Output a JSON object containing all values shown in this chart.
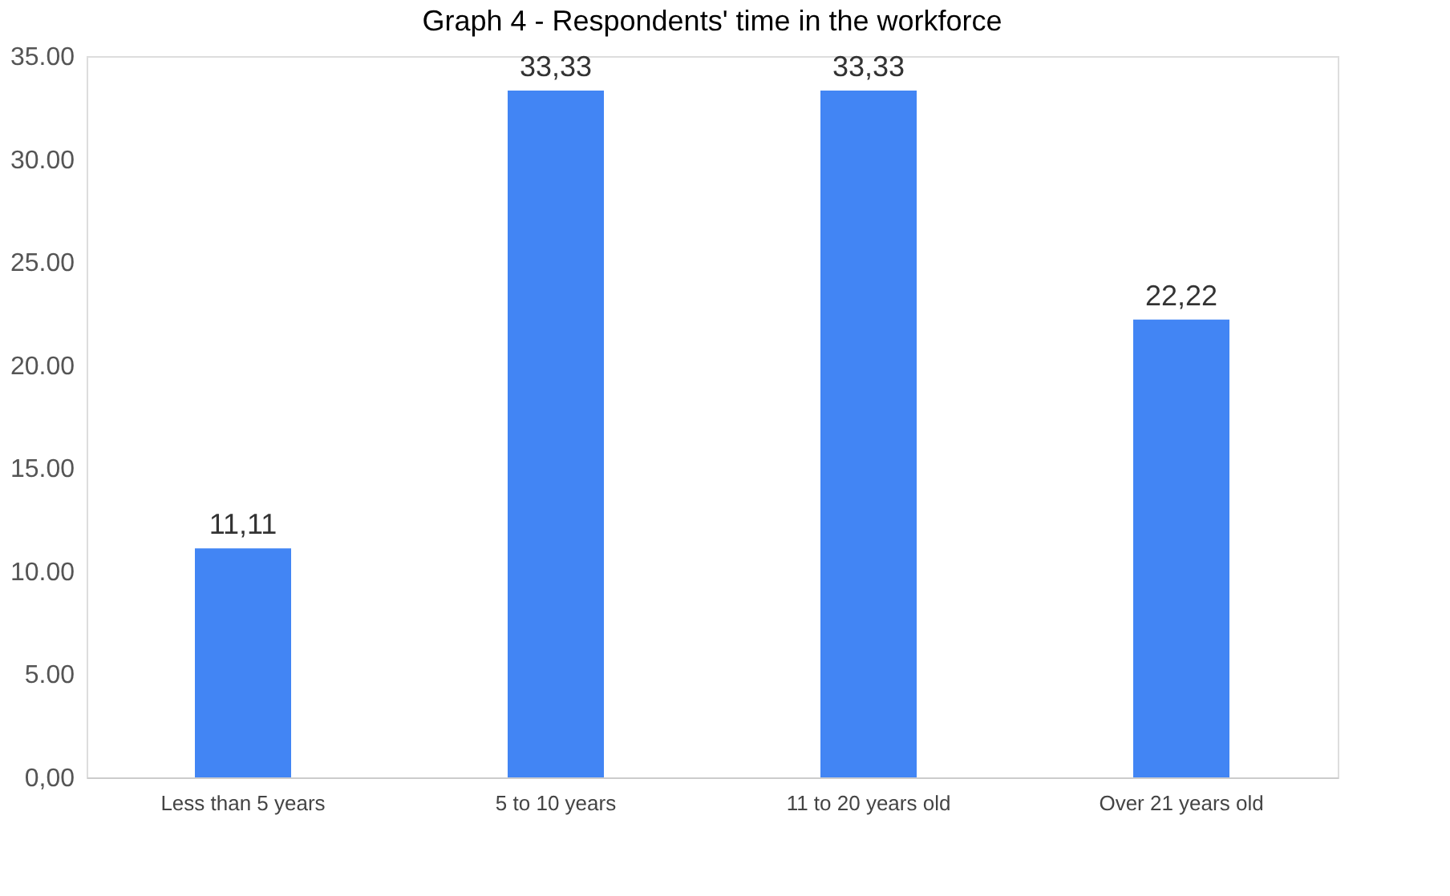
{
  "chart_data": {
    "type": "bar",
    "title": "Graph 4 - Respondents' time in the workforce",
    "categories": [
      "Less than 5 years",
      "5 to 10 years",
      "11 to 20 years old",
      "Over 21 years old"
    ],
    "values": [
      11.11,
      33.33,
      33.33,
      22.22
    ],
    "value_labels": [
      "11,11",
      "33,33",
      "33,33",
      "22,22"
    ],
    "color": "#4285f4",
    "ylim": [
      0,
      35
    ],
    "yticks": [
      {
        "value": 0,
        "label": "0,00"
      },
      {
        "value": 5,
        "label": "5.00"
      },
      {
        "value": 10,
        "label": "10.00"
      },
      {
        "value": 15,
        "label": "15.00"
      },
      {
        "value": 20,
        "label": "20.00"
      },
      {
        "value": 25,
        "label": "25.00"
      },
      {
        "value": 30,
        "label": "30.00"
      },
      {
        "value": 35,
        "label": "35.00"
      }
    ],
    "grid": false
  }
}
